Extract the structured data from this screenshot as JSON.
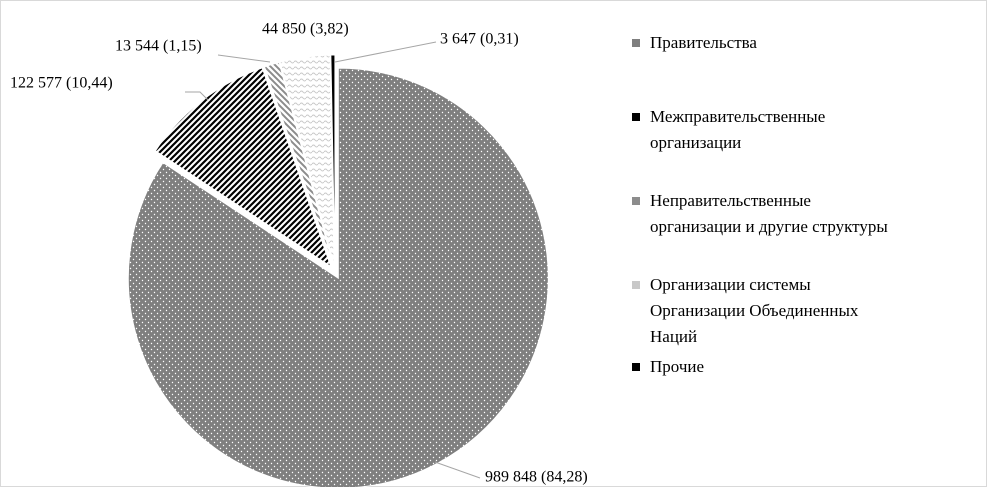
{
  "chart_data": {
    "type": "pie",
    "categories": [
      "Правительства",
      "Межправительственные\nорганизации",
      "Неправительственные\nорганизации и другие структуры",
      "Организации системы\nОрганизации Объединенных\nНаций",
      "Прочие"
    ],
    "values": [
      989848,
      122577,
      13544,
      44850,
      3647
    ],
    "value_labels": [
      "989 848  (84,28)",
      "122 577  (10,44)",
      "13 544  (1,15)",
      "44 850  (3,82)",
      "3 647  (0,31)"
    ],
    "colors": [
      "#7f7f7f",
      "#000000",
      "#8c8c8c",
      "#c8c8c8",
      "#000000"
    ],
    "legend": "right"
  }
}
